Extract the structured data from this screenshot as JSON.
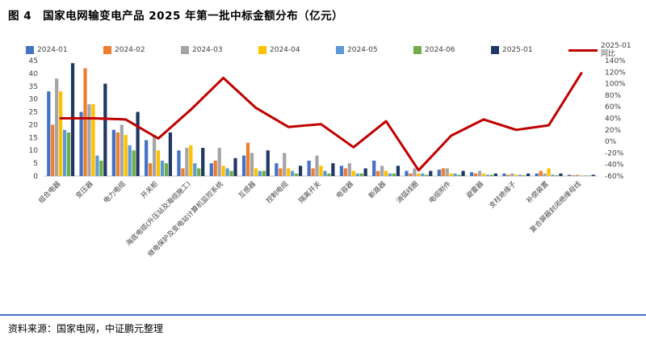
{
  "title": "图 4　国家电网输变电产品 2025 年第一批中标金额分布（亿元）",
  "source_note": "资料来源：国家电网，中证鹏元整理",
  "chart_data": {
    "type": "bar",
    "title": "国家电网输变电产品 2025 年第一批中标金额分布（亿元）",
    "xlabel": "",
    "ylabel": "",
    "grid": false,
    "legend_position": "top",
    "categories": [
      "组合电器",
      "变压器",
      "电力电缆",
      "开关柜",
      "海底电缆(升压站及海缆施工)",
      "继电保护及变电站计算机监控系统",
      "互感器",
      "控制电缆",
      "隔离开关",
      "电容器",
      "断路器",
      "消弧线圈",
      "电缆附件",
      "避雷器",
      "支柱绝缘子",
      "补偿装置",
      "复合屏蔽封闭绝缘母线"
    ],
    "series": [
      {
        "name": "2024-01",
        "color": "#4472C4",
        "values": [
          33,
          25,
          18,
          14,
          10,
          5,
          8,
          5,
          6,
          4,
          6,
          2,
          2.5,
          1.5,
          1,
          1,
          0.5
        ]
      },
      {
        "name": "2024-02",
        "color": "#ED7D31",
        "values": [
          20,
          42,
          17,
          5,
          3,
          6,
          13,
          3,
          3,
          3,
          2,
          1,
          3,
          1,
          0.5,
          2,
          0.3
        ]
      },
      {
        "name": "2024-03",
        "color": "#A5A5A5",
        "values": [
          38,
          28,
          20,
          16,
          11,
          11,
          9,
          9,
          8,
          5,
          4,
          3,
          3,
          2,
          1,
          1,
          0.5
        ]
      },
      {
        "name": "2024-04",
        "color": "#FFC000",
        "values": [
          33,
          28,
          16,
          10,
          12,
          4,
          3,
          3,
          4,
          2,
          2,
          1,
          1,
          1,
          0.5,
          3,
          0.3
        ]
      },
      {
        "name": "2024-05",
        "color": "#5B9BD5",
        "values": [
          18,
          8,
          12,
          6,
          5,
          3,
          2,
          2,
          2,
          1,
          1,
          1,
          1,
          0.5,
          0.5,
          0.5,
          0.2
        ]
      },
      {
        "name": "2024-06",
        "color": "#70AD47",
        "values": [
          17,
          6,
          10,
          5,
          3,
          2,
          2,
          1,
          1,
          1,
          1,
          0.5,
          0.5,
          0.5,
          0.3,
          0.3,
          0.2
        ]
      },
      {
        "name": "2025-01",
        "color": "#1F3864",
        "values": [
          44,
          36,
          25,
          17,
          11,
          7,
          10,
          4,
          5,
          3,
          4,
          2,
          2,
          1,
          1,
          1,
          0.5
        ]
      }
    ],
    "line_series": {
      "name": "2025-01同比",
      "color": "#C00000",
      "axis": "right",
      "values": [
        40,
        40,
        38,
        5,
        55,
        110,
        58,
        25,
        30,
        -10,
        35,
        -50,
        10,
        38,
        20,
        28,
        118
      ]
    },
    "left_axis": {
      "min": 0,
      "max": 45,
      "step": 5
    },
    "right_axis": {
      "min": -60,
      "max": 140,
      "step": 20,
      "suffix": "%"
    },
    "legend": [
      {
        "label": "2024-01",
        "color": "#4472C4",
        "type": "square"
      },
      {
        "label": "2024-02",
        "color": "#ED7D31",
        "type": "square"
      },
      {
        "label": "2024-03",
        "color": "#A5A5A5",
        "type": "square"
      },
      {
        "label": "2024-04",
        "color": "#FFC000",
        "type": "square"
      },
      {
        "label": "2024-05",
        "color": "#5B9BD5",
        "type": "square"
      },
      {
        "label": "2024-06",
        "color": "#70AD47",
        "type": "square"
      },
      {
        "label": "2025-01",
        "color": "#1F3864",
        "type": "square"
      },
      {
        "label": "2025-01同比",
        "color": "#C00000",
        "type": "line"
      }
    ]
  }
}
